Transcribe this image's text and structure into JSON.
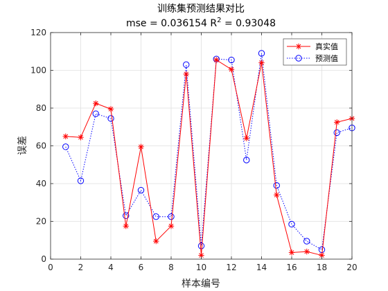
{
  "chart_data": {
    "type": "line",
    "title": "训练集预测结果对比",
    "subtitle_prefix": "mse = 0.036154 R",
    "subtitle_sup": "2",
    "subtitle_suffix": " = 0.93048",
    "xlabel": "样本编号",
    "ylabel": "误差",
    "xlim": [
      0,
      20
    ],
    "ylim": [
      0,
      120
    ],
    "xticks": [
      0,
      2,
      4,
      6,
      8,
      10,
      12,
      14,
      16,
      18,
      20
    ],
    "yticks": [
      0,
      20,
      40,
      60,
      80,
      100,
      120
    ],
    "grid": true,
    "legend_position": "top-right",
    "x": [
      1,
      2,
      3,
      4,
      5,
      6,
      7,
      8,
      9,
      10,
      11,
      12,
      13,
      14,
      15,
      16,
      17,
      18,
      19,
      20
    ],
    "series": [
      {
        "name": "真实值",
        "color": "#ff0000",
        "line": "solid",
        "marker": "asterisk",
        "values": [
          65,
          64.5,
          82.5,
          79.5,
          17.5,
          59.5,
          9.5,
          17.5,
          98,
          2,
          105.5,
          100.5,
          64,
          104,
          34,
          3.5,
          4,
          2,
          72.5,
          74.5
        ]
      },
      {
        "name": "预测值",
        "color": "#0000ff",
        "line": "dotted",
        "marker": "circle",
        "values": [
          59.5,
          41.5,
          77,
          74.5,
          23,
          36.5,
          22.5,
          22.5,
          103,
          7,
          106,
          105.5,
          52.5,
          109,
          39,
          18.5,
          9.5,
          5,
          67,
          69.5
        ]
      }
    ]
  }
}
